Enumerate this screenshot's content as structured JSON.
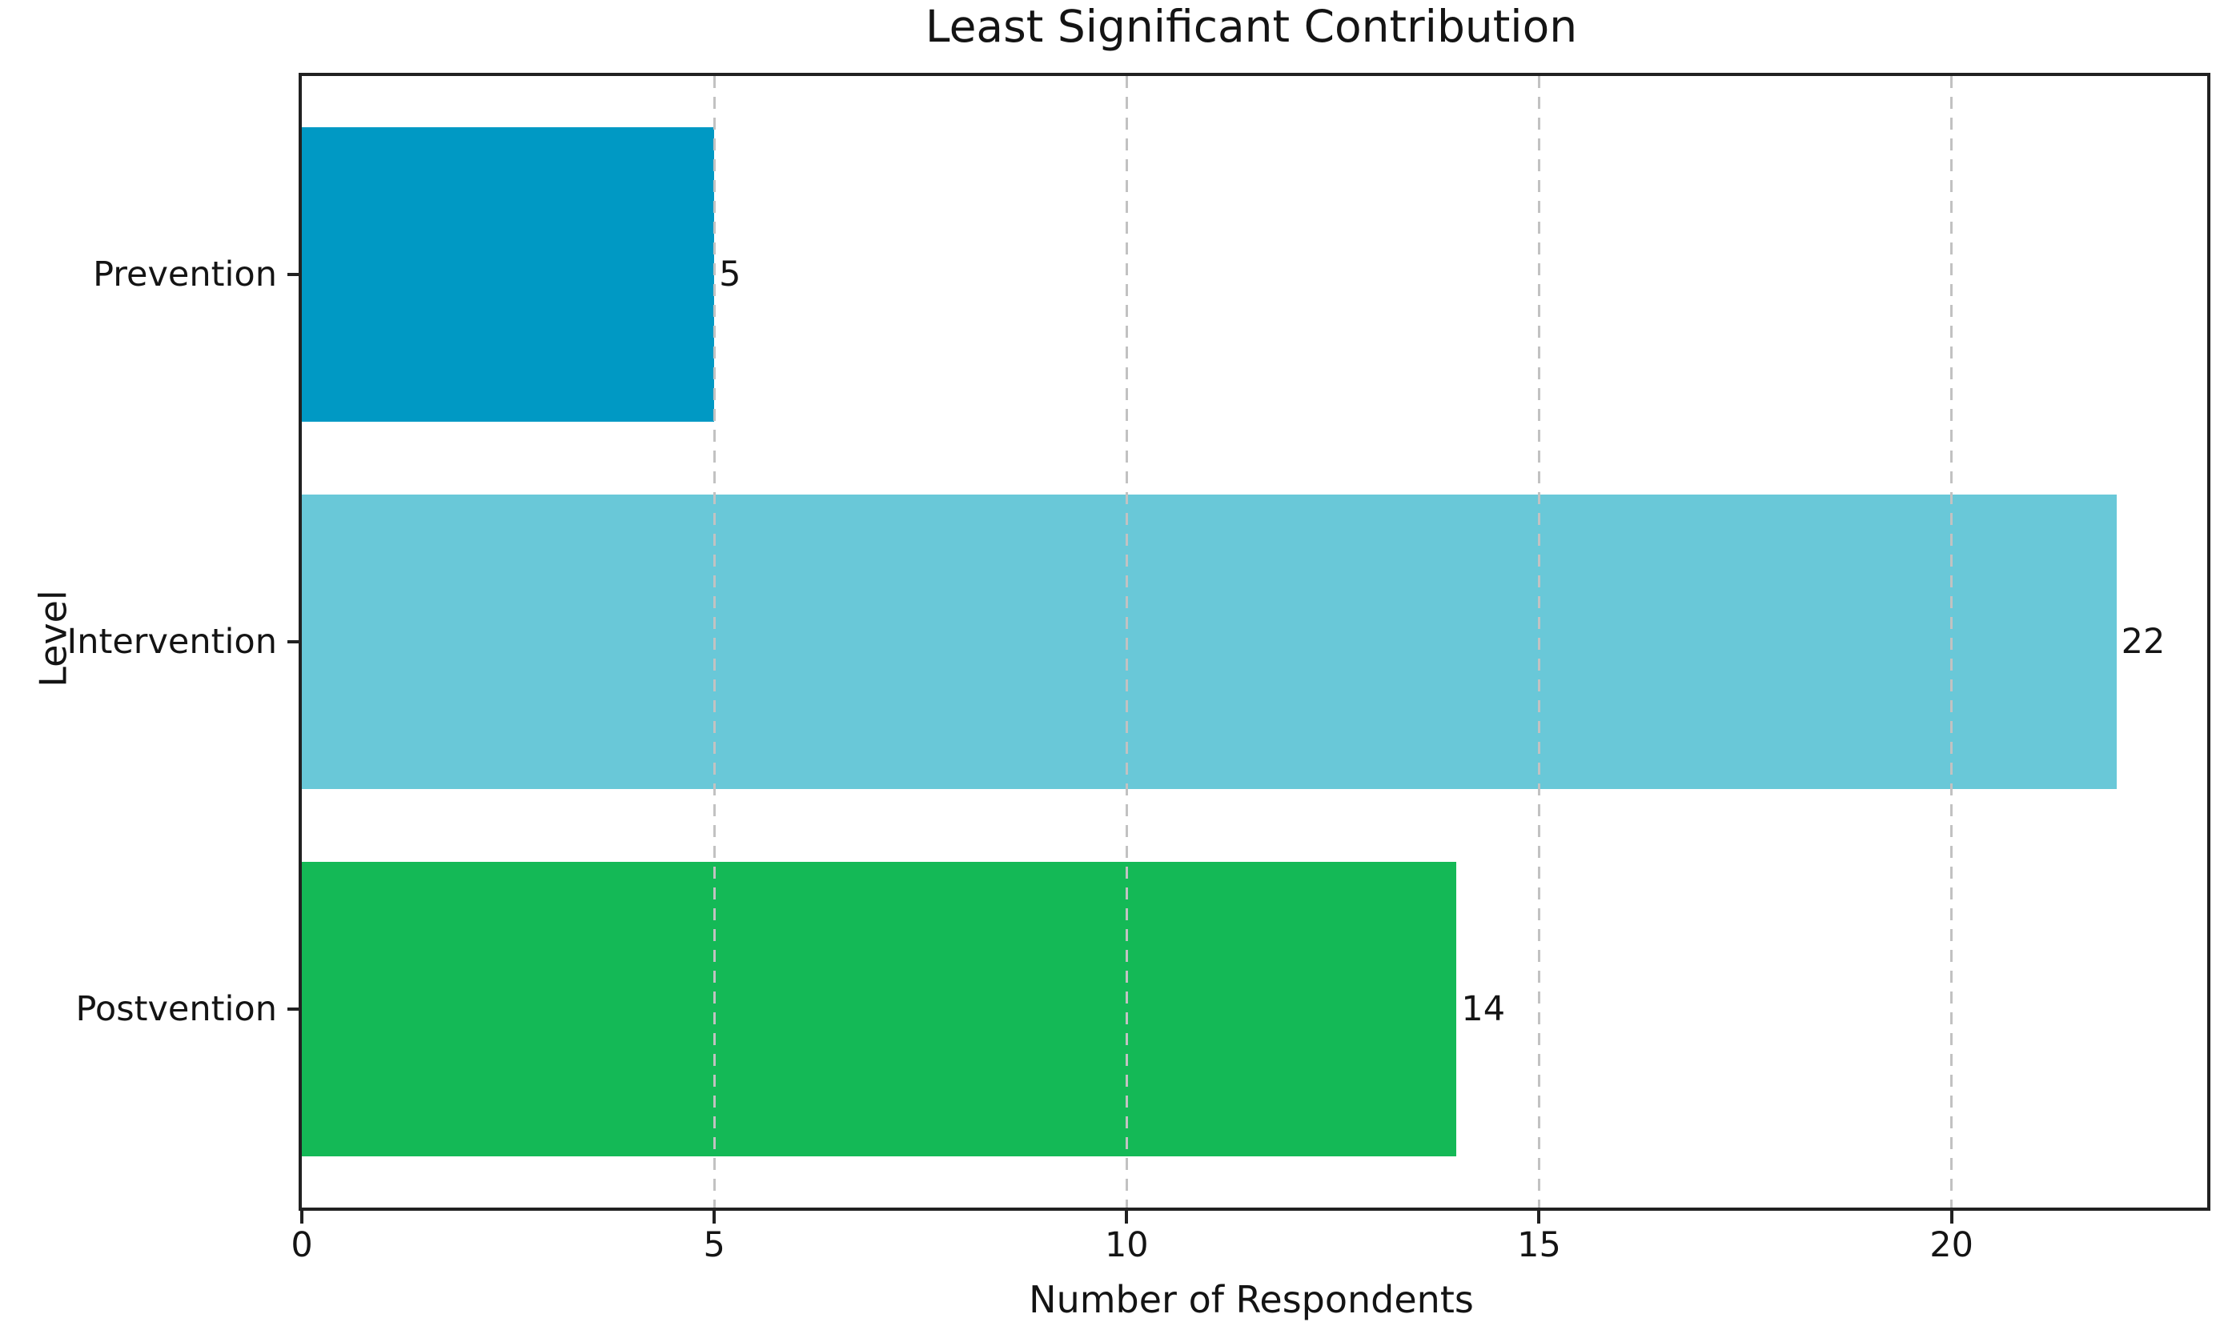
{
  "chart_data": {
    "type": "bar",
    "orientation": "horizontal",
    "title": "Least Significant Contribution",
    "xlabel": "Number of Respondents",
    "ylabel": "Level",
    "categories": [
      "Prevention",
      "Intervention",
      "Postvention"
    ],
    "values": [
      5,
      22,
      14
    ],
    "value_labels": [
      "5",
      "22",
      "14"
    ],
    "bar_colors": [
      "#0099c4",
      "#69c8d8",
      "#14b956"
    ],
    "x_ticks": [
      0,
      5,
      10,
      15,
      20
    ],
    "xlim": [
      0,
      23.1
    ],
    "grid": "vertical-dashed-at-nonzero-ticks",
    "grid_color": "#c2c2c2",
    "spine_color": "#212121",
    "legend": "none",
    "background_color": "#ffffff"
  }
}
